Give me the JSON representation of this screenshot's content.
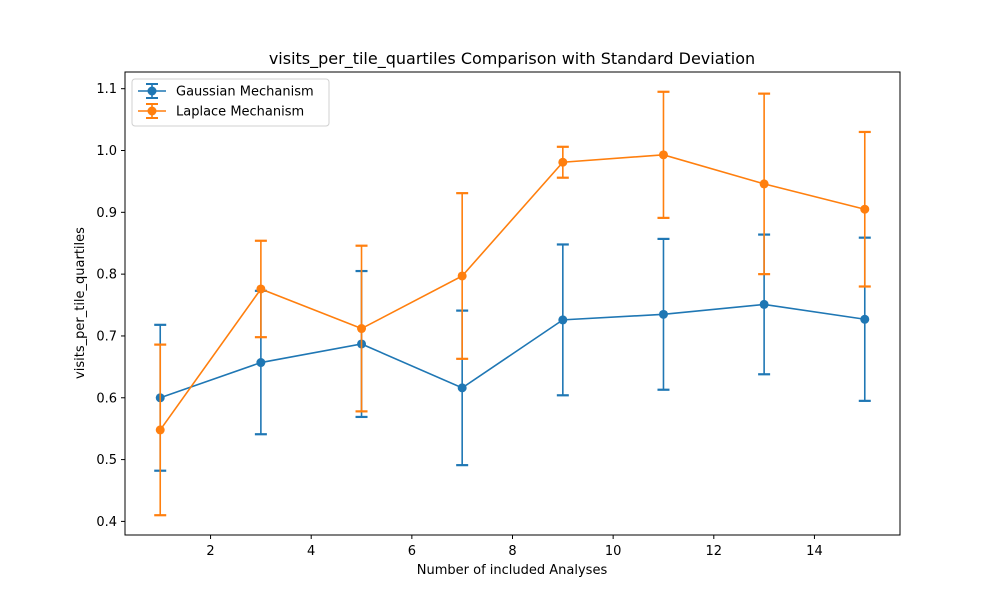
{
  "chart_data": {
    "type": "line",
    "title": "visits_per_tile_quartiles Comparison with Standard Deviation",
    "xlabel": "Number of included Analyses",
    "ylabel": "visits_per_tile_quartiles",
    "xlim": [
      0.3,
      15.7
    ],
    "ylim": [
      0.378,
      1.127
    ],
    "xticks": [
      2,
      4,
      6,
      8,
      10,
      12,
      14
    ],
    "yticks": [
      0.4,
      0.5,
      0.6,
      0.7,
      0.8,
      0.9,
      1.0,
      1.1
    ],
    "xtick_labels": [
      "2",
      "4",
      "6",
      "8",
      "10",
      "12",
      "14"
    ],
    "ytick_labels": [
      "0.4",
      "0.5",
      "0.6",
      "0.7",
      "0.8",
      "0.9",
      "1.0",
      "1.1"
    ],
    "legend_position": "top-left",
    "grid": false,
    "x": [
      1,
      3,
      5,
      7,
      9,
      11,
      13,
      15
    ],
    "series": [
      {
        "name": "Gaussian Mechanism",
        "color": "#1f77b4",
        "values": [
          0.6,
          0.657,
          0.687,
          0.616,
          0.726,
          0.735,
          0.751,
          0.727
        ],
        "error": [
          0.118,
          0.116,
          0.118,
          0.125,
          0.122,
          0.122,
          0.113,
          0.132
        ]
      },
      {
        "name": "Laplace Mechanism",
        "color": "#ff7f0e",
        "values": [
          0.548,
          0.776,
          0.712,
          0.797,
          0.981,
          0.993,
          0.946,
          0.905
        ],
        "error": [
          0.138,
          0.078,
          0.134,
          0.134,
          0.025,
          0.102,
          0.146,
          0.125
        ]
      }
    ]
  }
}
